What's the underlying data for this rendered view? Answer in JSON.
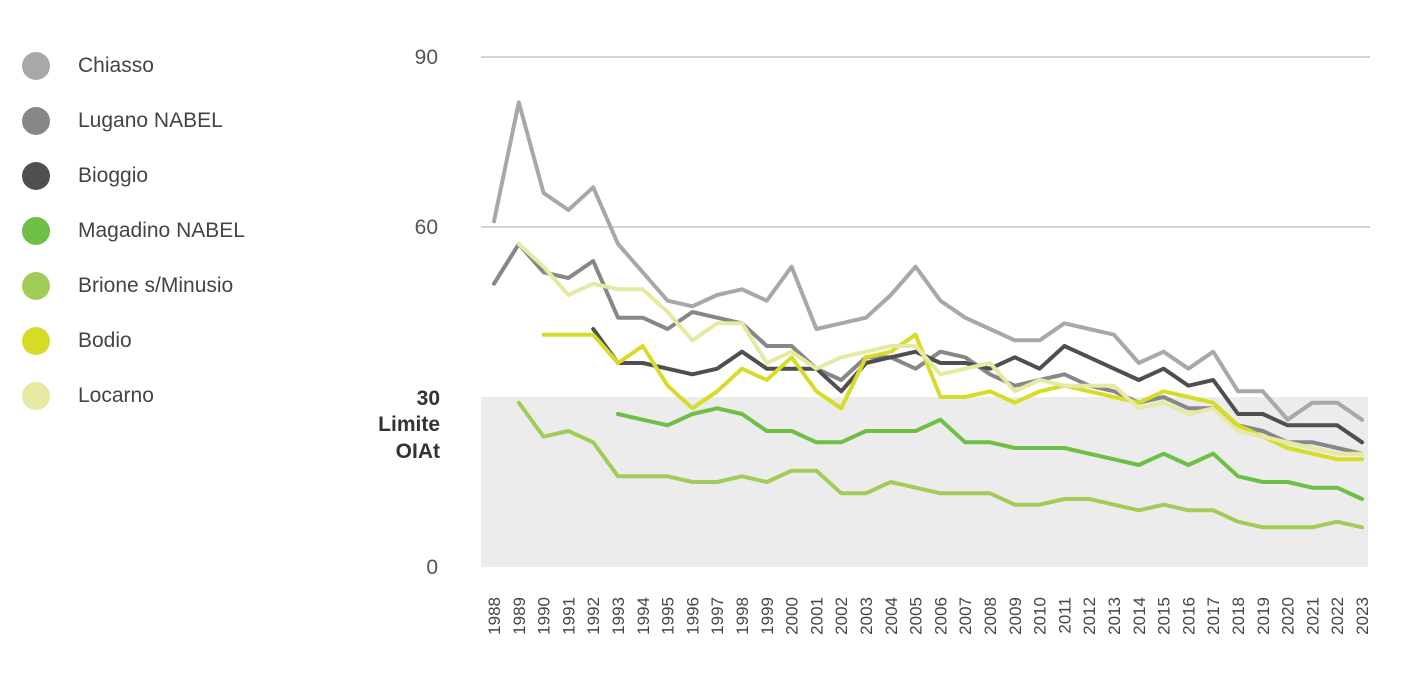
{
  "chart_data": {
    "type": "line",
    "title": "",
    "xlabel": "",
    "ylabel": "",
    "ylim": [
      0,
      90
    ],
    "yticks": [
      0,
      60,
      90
    ],
    "reference_band": {
      "from": 0,
      "to": 30,
      "value_label": "30",
      "label": "Limite OIAt",
      "color": "#ececec"
    },
    "grid": "horizontal at 60 and 90",
    "legend_position": "left",
    "x": [
      1988,
      1989,
      1990,
      1991,
      1992,
      1993,
      1994,
      1995,
      1996,
      1997,
      1998,
      1999,
      2000,
      2001,
      2002,
      2003,
      2004,
      2005,
      2006,
      2007,
      2008,
      2009,
      2010,
      2011,
      2012,
      2013,
      2014,
      2015,
      2016,
      2017,
      2018,
      2019,
      2020,
      2021,
      2022,
      2023
    ],
    "series": [
      {
        "name": "Chiasso",
        "color": "#a8a8aa",
        "values": [
          61,
          82,
          66,
          63,
          67,
          57,
          52,
          47,
          46,
          48,
          49,
          47,
          53,
          42,
          43,
          44,
          48,
          53,
          47,
          44,
          42,
          40,
          40,
          43,
          42,
          41,
          36,
          38,
          35,
          38,
          31,
          31,
          26,
          29,
          29,
          26
        ]
      },
      {
        "name": "Lugano NABEL",
        "color": "#87878a",
        "values": [
          50,
          57,
          52,
          51,
          54,
          44,
          44,
          42,
          45,
          44,
          43,
          39,
          39,
          35,
          33,
          37,
          37,
          35,
          38,
          37,
          34,
          32,
          33,
          34,
          32,
          31,
          29,
          30,
          28,
          28,
          25,
          24,
          22,
          22,
          21,
          20
        ]
      },
      {
        "name": "Bioggio",
        "color": "#4f4f51",
        "values": [
          null,
          null,
          null,
          null,
          42,
          36,
          36,
          35,
          34,
          35,
          38,
          35,
          35,
          35,
          31,
          36,
          37,
          38,
          36,
          36,
          35,
          37,
          35,
          39,
          37,
          35,
          33,
          35,
          32,
          33,
          27,
          27,
          25,
          25,
          25,
          22
        ]
      },
      {
        "name": "Magadino NABEL",
        "color": "#6dbf45",
        "values": [
          null,
          null,
          null,
          null,
          null,
          27,
          26,
          25,
          27,
          28,
          27,
          24,
          24,
          22,
          22,
          24,
          24,
          24,
          26,
          22,
          22,
          21,
          21,
          21,
          20,
          19,
          18,
          20,
          18,
          20,
          16,
          15,
          15,
          14,
          14,
          12
        ]
      },
      {
        "name": "Brione s/Minusio",
        "color": "#a2cc58",
        "values": [
          null,
          29,
          23,
          24,
          22,
          16,
          16,
          16,
          15,
          15,
          16,
          15,
          17,
          17,
          13,
          13,
          15,
          14,
          13,
          13,
          13,
          11,
          11,
          12,
          12,
          11,
          10,
          11,
          10,
          10,
          8,
          7,
          7,
          7,
          8,
          7
        ]
      },
      {
        "name": "Bodio",
        "color": "#d6dc28",
        "values": [
          null,
          null,
          41,
          41,
          41,
          36,
          39,
          32,
          28,
          31,
          35,
          33,
          37,
          31,
          28,
          37,
          38,
          41,
          30,
          30,
          31,
          29,
          31,
          32,
          31,
          30,
          29,
          31,
          30,
          29,
          25,
          23,
          21,
          20,
          19,
          19
        ]
      },
      {
        "name": "Locarno",
        "color": "#e6e9a2",
        "values": [
          null,
          57,
          53,
          48,
          50,
          49,
          49,
          45,
          40,
          43,
          43,
          36,
          38,
          35,
          37,
          38,
          39,
          39,
          34,
          35,
          36,
          31,
          33,
          32,
          32,
          32,
          28,
          29,
          27,
          28,
          24,
          23,
          22,
          21,
          20,
          20
        ]
      }
    ]
  }
}
